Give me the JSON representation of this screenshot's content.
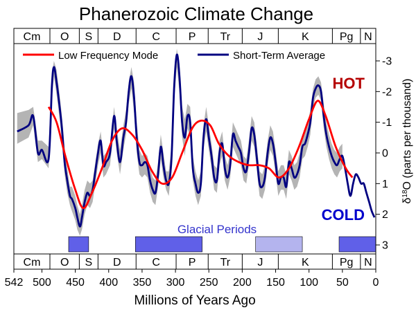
{
  "chart_data": {
    "type": "line",
    "title": "Phanerozoic Climate Change",
    "xlabel": "Millions of Years Ago",
    "ylabel_main": "δ",
    "ylabel_sup": "18",
    "ylabel_rest": "O (parts per thousand)",
    "xlim": [
      542,
      0
    ],
    "ylim": [
      3.3,
      -3.4
    ],
    "x_ticks": [
      542,
      500,
      450,
      400,
      350,
      300,
      250,
      200,
      150,
      100,
      50,
      0
    ],
    "y_ticks": [
      -3,
      -2,
      -1,
      0,
      1,
      2,
      3
    ],
    "y_tick_labels": [
      "-3",
      "-2",
      "-1",
      "0",
      "1",
      "2",
      "3"
    ],
    "periods": [
      {
        "label": "Cm",
        "start": 542,
        "end": 488
      },
      {
        "label": "O",
        "start": 488,
        "end": 444
      },
      {
        "label": "S",
        "start": 444,
        "end": 416
      },
      {
        "label": "D",
        "start": 416,
        "end": 359
      },
      {
        "label": "C",
        "start": 359,
        "end": 299
      },
      {
        "label": "P",
        "start": 299,
        "end": 251
      },
      {
        "label": "Tr",
        "start": 251,
        "end": 200
      },
      {
        "label": "J",
        "start": 200,
        "end": 146
      },
      {
        "label": "K",
        "start": 146,
        "end": 65
      },
      {
        "label": "Pg",
        "start": 65,
        "end": 23
      },
      {
        "label": "N",
        "start": 23,
        "end": 0
      }
    ],
    "legend": [
      {
        "name": "Low Frequency Mode",
        "color": "#ff0000"
      },
      {
        "name": "Short-Term Average",
        "color": "#000080"
      }
    ],
    "annotations": {
      "hot": "HOT",
      "cold": "COLD",
      "glacial": "Glacial Periods"
    },
    "colors": {
      "hot": "#b50000",
      "cold": "#0000cc",
      "glacial_label": "#3333cc",
      "glacial_strong": "#6060e8",
      "glacial_light": "#b4b4ee",
      "band": "#b4b4b4"
    },
    "glacial_periods": [
      {
        "start": 460,
        "end": 430,
        "intensity": "strong"
      },
      {
        "start": 360,
        "end": 260,
        "intensity": "strong"
      },
      {
        "start": 180,
        "end": 110,
        "intensity": "light"
      },
      {
        "start": 55,
        "end": 0,
        "intensity": "strong"
      }
    ],
    "series": [
      {
        "name": "Short-Term Average",
        "x": [
          537,
          520,
          513,
          506,
          500,
          490,
          485,
          482,
          478,
          474,
          470,
          466,
          462,
          458,
          455,
          450,
          447,
          443,
          440,
          436,
          432,
          428,
          424,
          420,
          416,
          412,
          408,
          404,
          398,
          392,
          388,
          383,
          378,
          374,
          370,
          366,
          362,
          358,
          354,
          350,
          346,
          342,
          338,
          334,
          330,
          326,
          322,
          318,
          314,
          310,
          306,
          302,
          298,
          294,
          290,
          286,
          282,
          278,
          274,
          270,
          266,
          262,
          258,
          254,
          250,
          246,
          242,
          238,
          234,
          230,
          226,
          222,
          218,
          214,
          210,
          206,
          202,
          198,
          194,
          190,
          186,
          182,
          178,
          174,
          170,
          166,
          162,
          158,
          154,
          150,
          146,
          142,
          138,
          134,
          130,
          126,
          122,
          118,
          114,
          110,
          106,
          102,
          98,
          94,
          90,
          86,
          82,
          78,
          74,
          70,
          66,
          62,
          58,
          54,
          50,
          46,
          42,
          38,
          34,
          30,
          26,
          22,
          18,
          14,
          10,
          6,
          2
        ],
        "y": [
          -0.7,
          -0.9,
          -1.2,
          0,
          -0.1,
          0.2,
          -2.2,
          -2.8,
          -2.3,
          -1.6,
          -0.8,
          0.3,
          0.9,
          1.4,
          1.5,
          1.8,
          2.1,
          2.4,
          2.1,
          1.6,
          1.3,
          1.4,
          1.2,
          0.6,
          0,
          -0.4,
          0.4,
          0.3,
          0,
          -1.2,
          -0.4,
          0.3,
          -0.5,
          -1.0,
          -2.0,
          -2.5,
          -1.8,
          -0.5,
          0.3,
          0.4,
          0.3,
          0.4,
          0.9,
          1.2,
          1.3,
          0.7,
          -0.2,
          0.4,
          0.9,
          1.0,
          0.2,
          -2.1,
          -3.2,
          -2.5,
          -1.0,
          -0.5,
          -1.2,
          -1.0,
          0.5,
          1.0,
          1.3,
          1.0,
          -0.5,
          -1.1,
          -0.5,
          0.1,
          0.8,
          0.9,
          0.0,
          -0.3,
          0.5,
          0.8,
          0.4,
          -0.6,
          -0.4,
          -0.2,
          0.0,
          0.5,
          0.6,
          0.0,
          -0.8,
          -0.6,
          0.2,
          1.0,
          1.1,
          0.8,
          0.0,
          -0.5,
          -0.3,
          0.3,
          1.0,
          0.8,
          0.8,
          1.1,
          0.3,
          0.5,
          0.8,
          0.7,
          0.4,
          -0.2,
          -0.3,
          -0.6,
          -1.0,
          -1.8,
          -2.1,
          -2.2,
          -2.0,
          -1.2,
          -0.6,
          -0.2,
          0.1,
          0.3,
          0.4,
          0.2,
          0.1,
          0.5,
          1.0,
          1.4,
          1.0,
          0.7,
          0.8,
          1.0,
          1.0,
          1.3,
          1.6,
          1.9,
          2.1
        ]
      },
      {
        "name": "Low Frequency Mode",
        "x": [
          490,
          478,
          465,
          450,
          438,
          425,
          410,
          395,
          380,
          365,
          350,
          335,
          320,
          305,
          290,
          275,
          262,
          248,
          235,
          220,
          205,
          190,
          175,
          160,
          145,
          130,
          115,
          100,
          87,
          75,
          60,
          45,
          35
        ],
        "y": [
          -1.5,
          -1.0,
          0.1,
          1.2,
          1.8,
          1.3,
          0.5,
          -0.4,
          -0.8,
          -0.6,
          -0.1,
          0.6,
          1.0,
          0.8,
          0.0,
          -0.8,
          -1.05,
          -0.9,
          -0.3,
          0.1,
          0.3,
          0.4,
          0.4,
          0.5,
          0.8,
          0.5,
          -0.2,
          -1.1,
          -1.7,
          -1.2,
          -0.2,
          0.5,
          0.8
        ]
      }
    ],
    "uncertainty_band": {
      "x": [
        537,
        520,
        513,
        506,
        500,
        490,
        485,
        482,
        478,
        474,
        470,
        466,
        462,
        458,
        455,
        450,
        447,
        443,
        440,
        436,
        432,
        428,
        424,
        420,
        416,
        412,
        408,
        404,
        398,
        392,
        388,
        383,
        378,
        374,
        370,
        366,
        362,
        358,
        354,
        350,
        346,
        342,
        338,
        334,
        330,
        326,
        322,
        318,
        314,
        310,
        306,
        302,
        298,
        294,
        290,
        286,
        282,
        278,
        274,
        270,
        266,
        262,
        258,
        254,
        250,
        246,
        242,
        238,
        234,
        230,
        226,
        222,
        218,
        214,
        210,
        206,
        202,
        198,
        194,
        190,
        186,
        182,
        178,
        174,
        170,
        166,
        162,
        158,
        154,
        150,
        146,
        142,
        138,
        134,
        130,
        126,
        122,
        118,
        114,
        110,
        106,
        102,
        98,
        94,
        90,
        86,
        82,
        78,
        74,
        70,
        66,
        62,
        58,
        54,
        50
      ],
      "upper_y": [
        -1.3,
        -1.4,
        -1.5,
        -0.4,
        -0.4,
        -0.2,
        -2.6,
        -3.0,
        -2.7,
        -2.0,
        -1.2,
        -0.2,
        0.5,
        1.1,
        1.1,
        1.4,
        1.7,
        2.0,
        1.7,
        1.2,
        0.9,
        1.0,
        0.9,
        0.3,
        -0.3,
        -0.7,
        0.1,
        0.0,
        -0.3,
        -1.5,
        -0.8,
        -0.1,
        -0.9,
        -1.4,
        -2.3,
        -2.8,
        -2.3,
        -1.0,
        -0.1,
        0.1,
        0.0,
        0.1,
        0.5,
        0.8,
        0.9,
        0.3,
        -0.6,
        0.0,
        0.6,
        0.6,
        -0.2,
        -2.5,
        -3.4,
        -2.9,
        -1.5,
        -1.1,
        -1.6,
        -1.5,
        0.1,
        0.6,
        0.9,
        0.6,
        -0.9,
        -1.5,
        -0.9,
        -0.3,
        0.4,
        0.5,
        -0.4,
        -0.7,
        0.1,
        0.4,
        0.0,
        -1.0,
        -0.8,
        -0.6,
        -0.4,
        0.1,
        0.2,
        -0.4,
        -1.2,
        -1.0,
        -0.2,
        0.6,
        0.7,
        0.4,
        -0.4,
        -0.9,
        -0.7,
        -0.1,
        0.6,
        0.4,
        0.4,
        0.7,
        -0.1,
        0.1,
        0.4,
        0.3,
        0.0,
        -0.6,
        -0.7,
        -1.0,
        -1.4,
        -2.1,
        -2.4,
        -2.5,
        -2.3,
        -1.6,
        -1.0,
        -0.6,
        -0.3,
        -0.1,
        0.0,
        -0.2,
        -0.3
      ],
      "lower_y": [
        -0.3,
        -0.5,
        -0.9,
        0.3,
        0.2,
        0.5,
        -1.8,
        -2.5,
        -1.9,
        -1.2,
        -0.4,
        0.7,
        1.3,
        1.7,
        1.9,
        2.2,
        2.5,
        2.7,
        2.5,
        2.0,
        1.7,
        1.8,
        1.6,
        1.0,
        0.4,
        0.0,
        0.8,
        0.7,
        0.4,
        -0.8,
        0.0,
        0.7,
        -0.1,
        -0.6,
        -1.6,
        -2.1,
        -1.3,
        0.0,
        0.7,
        0.8,
        0.7,
        0.8,
        1.3,
        1.6,
        1.7,
        1.1,
        0.2,
        0.8,
        1.2,
        1.4,
        0.6,
        -1.7,
        -2.8,
        -2.0,
        -0.5,
        0.1,
        -0.8,
        -0.5,
        0.9,
        1.4,
        1.7,
        1.4,
        -0.1,
        -0.7,
        -0.1,
        0.5,
        1.2,
        1.3,
        0.4,
        0.1,
        0.9,
        1.2,
        0.8,
        -0.2,
        0.0,
        0.2,
        0.4,
        0.9,
        1.0,
        0.4,
        -0.4,
        -0.2,
        0.6,
        1.4,
        1.5,
        1.2,
        0.4,
        -0.1,
        0.1,
        0.7,
        1.4,
        1.2,
        1.2,
        1.5,
        0.7,
        0.9,
        1.2,
        1.1,
        0.8,
        0.2,
        0.1,
        -0.2,
        -0.6,
        -1.5,
        -1.8,
        -1.9,
        -1.7,
        -0.8,
        -0.2,
        0.2,
        0.5,
        0.7,
        0.8,
        0.6,
        0.5
      ]
    }
  }
}
